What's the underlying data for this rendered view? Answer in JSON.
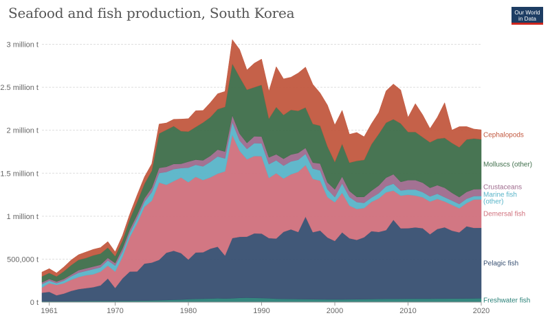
{
  "title": "Seafood and fish production, South Korea",
  "logo": {
    "line1": "Our World",
    "line2": "in Data"
  },
  "chart_data": {
    "type": "area",
    "stacked": true,
    "x_axis_labels": [
      "1961",
      "1970",
      "1980",
      "1990",
      "2000",
      "2010",
      "2020"
    ],
    "y_axis_labels": [
      "0 t",
      "500,000 t",
      "1 million t",
      "1.5 million t",
      "2 million t",
      "2.5 million t",
      "3 million t"
    ],
    "xlim": [
      1960,
      2020
    ],
    "ylim": [
      0,
      3100000
    ],
    "grid": true,
    "x": [
      1960,
      1961,
      1962,
      1963,
      1964,
      1965,
      1966,
      1967,
      1968,
      1969,
      1970,
      1971,
      1972,
      1973,
      1974,
      1975,
      1976,
      1977,
      1978,
      1979,
      1980,
      1981,
      1982,
      1983,
      1984,
      1985,
      1986,
      1987,
      1988,
      1989,
      1990,
      1991,
      1992,
      1993,
      1994,
      1995,
      1996,
      1997,
      1998,
      1999,
      2000,
      2001,
      2002,
      2003,
      2004,
      2005,
      2006,
      2007,
      2008,
      2009,
      2010,
      2011,
      2012,
      2013,
      2014,
      2015,
      2016,
      2017,
      2018,
      2019,
      2020
    ],
    "series": [
      {
        "name": "Freshwater fish",
        "color": "#2a8178",
        "values": [
          10000,
          10000,
          10000,
          10000,
          11000,
          12000,
          13000,
          14000,
          15000,
          15000,
          15000,
          16000,
          16000,
          17000,
          18000,
          20000,
          22000,
          25000,
          28000,
          30000,
          35000,
          38000,
          40000,
          42000,
          45000,
          42000,
          45000,
          50000,
          52000,
          50000,
          48000,
          45000,
          40000,
          38000,
          37000,
          36000,
          35000,
          34000,
          33000,
          32000,
          32000,
          32000,
          33000,
          34000,
          35000,
          36000,
          37000,
          38000,
          38000,
          39000,
          40000,
          40000,
          40000,
          40000,
          41000,
          41000,
          42000,
          42000,
          43000,
          44000,
          45000
        ]
      },
      {
        "name": "Pelagic fish",
        "color": "#374f71",
        "values": [
          100000,
          110000,
          70000,
          90000,
          120000,
          140000,
          150000,
          160000,
          180000,
          260000,
          150000,
          260000,
          340000,
          340000,
          430000,
          440000,
          470000,
          550000,
          570000,
          540000,
          460000,
          540000,
          540000,
          580000,
          600000,
          500000,
          700000,
          710000,
          710000,
          750000,
          750000,
          700000,
          700000,
          780000,
          810000,
          780000,
          960000,
          780000,
          800000,
          720000,
          680000,
          780000,
          710000,
          690000,
          720000,
          790000,
          780000,
          800000,
          920000,
          820000,
          820000,
          830000,
          820000,
          750000,
          810000,
          830000,
          790000,
          770000,
          840000,
          820000,
          820000
        ]
      },
      {
        "name": "Demersal fish",
        "color": "#d0707c",
        "values": [
          60000,
          100000,
          120000,
          120000,
          130000,
          140000,
          150000,
          150000,
          160000,
          150000,
          190000,
          250000,
          400000,
          560000,
          660000,
          720000,
          900000,
          790000,
          810000,
          880000,
          900000,
          880000,
          840000,
          830000,
          850000,
          980000,
          1200000,
          1000000,
          900000,
          900000,
          900000,
          700000,
          760000,
          620000,
          640000,
          700000,
          600000,
          620000,
          580000,
          470000,
          450000,
          460000,
          380000,
          360000,
          340000,
          340000,
          390000,
          440000,
          340000,
          380000,
          390000,
          370000,
          360000,
          380000,
          350000,
          300000,
          300000,
          280000,
          270000,
          330000,
          330000
        ]
      },
      {
        "name": "Marine fish (other)",
        "color": "#58b4c8",
        "values": [
          40000,
          30000,
          20000,
          30000,
          40000,
          50000,
          50000,
          60000,
          50000,
          60000,
          70000,
          60000,
          50000,
          60000,
          60000,
          100000,
          110000,
          150000,
          140000,
          110000,
          170000,
          140000,
          160000,
          180000,
          200000,
          150000,
          150000,
          120000,
          120000,
          150000,
          150000,
          160000,
          150000,
          150000,
          150000,
          140000,
          130000,
          120000,
          120000,
          90000,
          60000,
          110000,
          100000,
          80000,
          60000,
          50000,
          60000,
          70000,
          80000,
          60000,
          60000,
          70000,
          60000,
          60000,
          60000,
          50000,
          50000,
          50000,
          50000,
          40000,
          40000
        ]
      },
      {
        "name": "Crustaceans",
        "color": "#9e6a8d",
        "values": [
          20000,
          20000,
          20000,
          20000,
          20000,
          30000,
          30000,
          30000,
          30000,
          30000,
          30000,
          40000,
          40000,
          40000,
          40000,
          50000,
          60000,
          60000,
          60000,
          50000,
          70000,
          60000,
          70000,
          70000,
          80000,
          80000,
          80000,
          80000,
          70000,
          80000,
          80000,
          80000,
          70000,
          80000,
          80000,
          80000,
          70000,
          70000,
          80000,
          80000,
          90000,
          80000,
          70000,
          60000,
          70000,
          80000,
          90000,
          100000,
          110000,
          100000,
          110000,
          110000,
          110000,
          100000,
          100000,
          110000,
          90000,
          80000,
          80000,
          80000,
          80000
        ]
      },
      {
        "name": "Molluscs (other)",
        "color": "#3e6e4a",
        "values": [
          70000,
          70000,
          60000,
          90000,
          110000,
          120000,
          120000,
          130000,
          130000,
          120000,
          80000,
          90000,
          120000,
          150000,
          170000,
          200000,
          400000,
          430000,
          440000,
          380000,
          350000,
          380000,
          440000,
          450000,
          470000,
          520000,
          600000,
          660000,
          620000,
          570000,
          600000,
          450000,
          550000,
          510000,
          520000,
          490000,
          470000,
          450000,
          440000,
          420000,
          320000,
          380000,
          330000,
          420000,
          430000,
          540000,
          600000,
          640000,
          640000,
          680000,
          560000,
          560000,
          530000,
          530000,
          540000,
          580000,
          580000,
          580000,
          610000,
          590000,
          580000
        ]
      },
      {
        "name": "Cephalopods",
        "color": "#c2583f",
        "values": [
          50000,
          50000,
          40000,
          50000,
          60000,
          60000,
          70000,
          70000,
          70000,
          70000,
          50000,
          60000,
          60000,
          80000,
          80000,
          80000,
          110000,
          80000,
          80000,
          140000,
          150000,
          190000,
          140000,
          170000,
          180000,
          180000,
          280000,
          320000,
          230000,
          280000,
          300000,
          320000,
          470000,
          420000,
          380000,
          440000,
          470000,
          460000,
          380000,
          480000,
          430000,
          390000,
          330000,
          330000,
          270000,
          240000,
          250000,
          370000,
          410000,
          390000,
          170000,
          330000,
          260000,
          160000,
          250000,
          410000,
          150000,
          240000,
          150000,
          110000,
          110000
        ]
      }
    ]
  }
}
